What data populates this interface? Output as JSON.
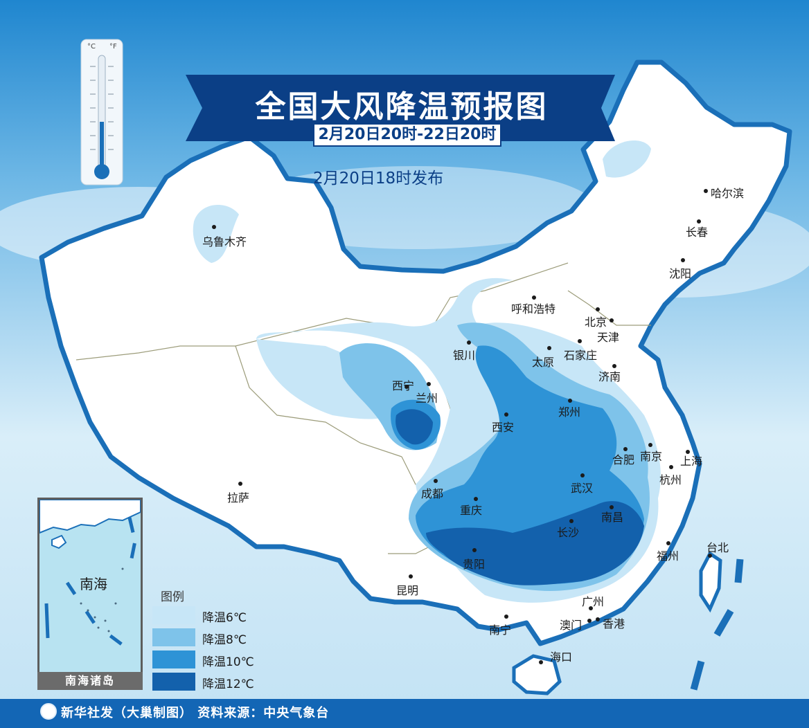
{
  "title": "全国大风降温预报图",
  "period": "2月20日20时-22日20时",
  "issued": "2月20日18时发布",
  "thermometer": {
    "unit_left": "°C",
    "unit_right": "°F"
  },
  "legend": {
    "title": "图例",
    "items": [
      {
        "label": "降温6℃",
        "color": "#c7e6f7"
      },
      {
        "label": "降温8℃",
        "color": "#7ec3ea"
      },
      {
        "label": "降温10℃",
        "color": "#2e93d6"
      },
      {
        "label": "降温12℃",
        "color": "#1361ac"
      }
    ]
  },
  "inset": {
    "sea_label": "南海",
    "caption": "南海诸岛"
  },
  "cities": [
    {
      "name": "乌鲁木齐"
    },
    {
      "name": "哈尔滨"
    },
    {
      "name": "长春"
    },
    {
      "name": "沈阳"
    },
    {
      "name": "呼和浩特"
    },
    {
      "name": "北京"
    },
    {
      "name": "天津"
    },
    {
      "name": "银川"
    },
    {
      "name": "太原"
    },
    {
      "name": "石家庄"
    },
    {
      "name": "济南"
    },
    {
      "name": "西宁"
    },
    {
      "name": "兰州"
    },
    {
      "name": "郑州"
    },
    {
      "name": "西安"
    },
    {
      "name": "合肥"
    },
    {
      "name": "南京"
    },
    {
      "name": "上海"
    },
    {
      "name": "杭州"
    },
    {
      "name": "拉萨"
    },
    {
      "name": "成都"
    },
    {
      "name": "武汉"
    },
    {
      "name": "重庆"
    },
    {
      "name": "南昌"
    },
    {
      "name": "长沙"
    },
    {
      "name": "贵阳"
    },
    {
      "name": "福州"
    },
    {
      "name": "台北"
    },
    {
      "name": "昆明"
    },
    {
      "name": "广州"
    },
    {
      "name": "澳门"
    },
    {
      "name": "香港"
    },
    {
      "name": "南宁"
    },
    {
      "name": "海口"
    }
  ],
  "footer": "新华社发（大巢制图） 资料来源：中央气象台",
  "colors": {
    "border": "#1a6fb8",
    "banner": "#0b3f86",
    "footer": "#1366b5"
  }
}
